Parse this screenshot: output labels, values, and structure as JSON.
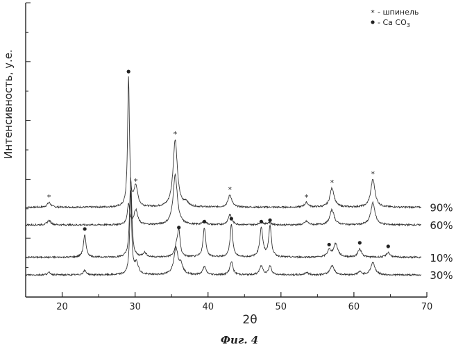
{
  "chart_data": {
    "type": "line",
    "xlabel": "2θ",
    "ylabel": "Интенсивность, у.е.",
    "xlim": [
      15,
      70
    ],
    "ylim": [
      0,
      100
    ],
    "xticks": [
      20,
      30,
      40,
      50,
      60,
      70
    ],
    "grid": false,
    "legend_position": "top-right",
    "legend": [
      {
        "symbol": "star",
        "label": "- шпинель"
      },
      {
        "symbol": "dot",
        "label": "- Ca CO",
        "subscript": "3"
      }
    ],
    "series": [
      {
        "name": "90%",
        "baseline": 30.5,
        "peaks": [
          [
            18.2,
            1.6,
            0.3
          ],
          [
            29.1,
            44,
            0.15
          ],
          [
            30.1,
            7,
            0.3
          ],
          [
            35.5,
            23,
            0.35
          ],
          [
            37.0,
            1.5,
            0.3
          ],
          [
            43.0,
            4.2,
            0.3
          ],
          [
            53.5,
            1.6,
            0.3
          ],
          [
            57.0,
            6.5,
            0.35
          ],
          [
            62.6,
            9.5,
            0.35
          ]
        ],
        "stars": [
          [
            18.2,
            1.6
          ],
          [
            30.1,
            7
          ],
          [
            35.5,
            23
          ],
          [
            43.0,
            4.2
          ],
          [
            53.5,
            1.6
          ],
          [
            57.0,
            6.5
          ],
          [
            62.6,
            9.5
          ]
        ],
        "dots": [
          [
            29.1,
            44
          ]
        ]
      },
      {
        "name": "60%",
        "baseline": 24.5,
        "peaks": [
          [
            18.2,
            1.5,
            0.3
          ],
          [
            29.1,
            7,
            0.2
          ],
          [
            30.1,
            5,
            0.3
          ],
          [
            35.5,
            17,
            0.35
          ],
          [
            39.5,
            1.2,
            0.3
          ],
          [
            43.0,
            3.5,
            0.3
          ],
          [
            47.3,
            1.0,
            0.3
          ],
          [
            48.4,
            0.8,
            0.3
          ],
          [
            53.5,
            1.2,
            0.3
          ],
          [
            57.0,
            5.2,
            0.35
          ],
          [
            62.6,
            7.5,
            0.35
          ]
        ],
        "stars": [],
        "dots": []
      },
      {
        "name": "10%",
        "baseline": 13.5,
        "peaks": [
          [
            23.1,
            7.5,
            0.22
          ],
          [
            29.4,
            27,
            0.18
          ],
          [
            31.3,
            1.5,
            0.3
          ],
          [
            35.7,
            3.5,
            0.3
          ],
          [
            36.0,
            8,
            0.2
          ],
          [
            39.5,
            10,
            0.22
          ],
          [
            43.2,
            11,
            0.22
          ],
          [
            47.3,
            10,
            0.25
          ],
          [
            48.5,
            10.5,
            0.22
          ],
          [
            56.6,
            2.2,
            0.3
          ],
          [
            57.5,
            4.5,
            0.35
          ],
          [
            60.8,
            2.8,
            0.3
          ],
          [
            64.7,
            1.6,
            0.3
          ]
        ],
        "stars": [],
        "dots": [
          [
            23.1,
            7.5
          ],
          [
            36.0,
            8
          ],
          [
            39.5,
            10
          ],
          [
            43.2,
            11
          ],
          [
            47.3,
            10
          ],
          [
            48.5,
            10.5
          ],
          [
            56.6,
            2.2
          ],
          [
            60.8,
            2.8
          ],
          [
            64.7,
            1.6
          ]
        ]
      },
      {
        "name": "30%",
        "baseline": 7.5,
        "peaks": [
          [
            18.2,
            0.8,
            0.3
          ],
          [
            23.1,
            1.5,
            0.25
          ],
          [
            29.4,
            28,
            0.16
          ],
          [
            30.2,
            4,
            0.3
          ],
          [
            35.6,
            9,
            0.35
          ],
          [
            36.3,
            3,
            0.3
          ],
          [
            39.5,
            2.8,
            0.25
          ],
          [
            43.2,
            4.5,
            0.25
          ],
          [
            47.3,
            3.0,
            0.28
          ],
          [
            48.5,
            3.0,
            0.25
          ],
          [
            53.5,
            0.8,
            0.3
          ],
          [
            57.0,
            3.2,
            0.35
          ],
          [
            60.8,
            1.0,
            0.3
          ],
          [
            62.6,
            4.2,
            0.35
          ]
        ],
        "stars": [],
        "dots": []
      }
    ]
  },
  "caption": "Фиг. 4"
}
